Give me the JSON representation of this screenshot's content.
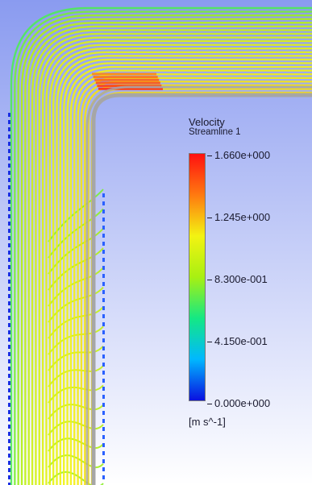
{
  "legend": {
    "title": "Velocity",
    "subtitle": "Streamline 1",
    "units": "[m s^-1]",
    "ticks": [
      "1.660e+000",
      "1.245e+000",
      "8.300e-001",
      "4.150e-001",
      "0.000e+000"
    ],
    "colormap": [
      "#0a10e0",
      "#00b8ff",
      "#14e884",
      "#a8f012",
      "#f3f312",
      "#ff7a10",
      "#ff1010"
    ]
  },
  "scene": {
    "background_top": "#8a9bf0",
    "background_bottom": "#ffffff",
    "pipe_color": "#a6a6a6"
  }
}
